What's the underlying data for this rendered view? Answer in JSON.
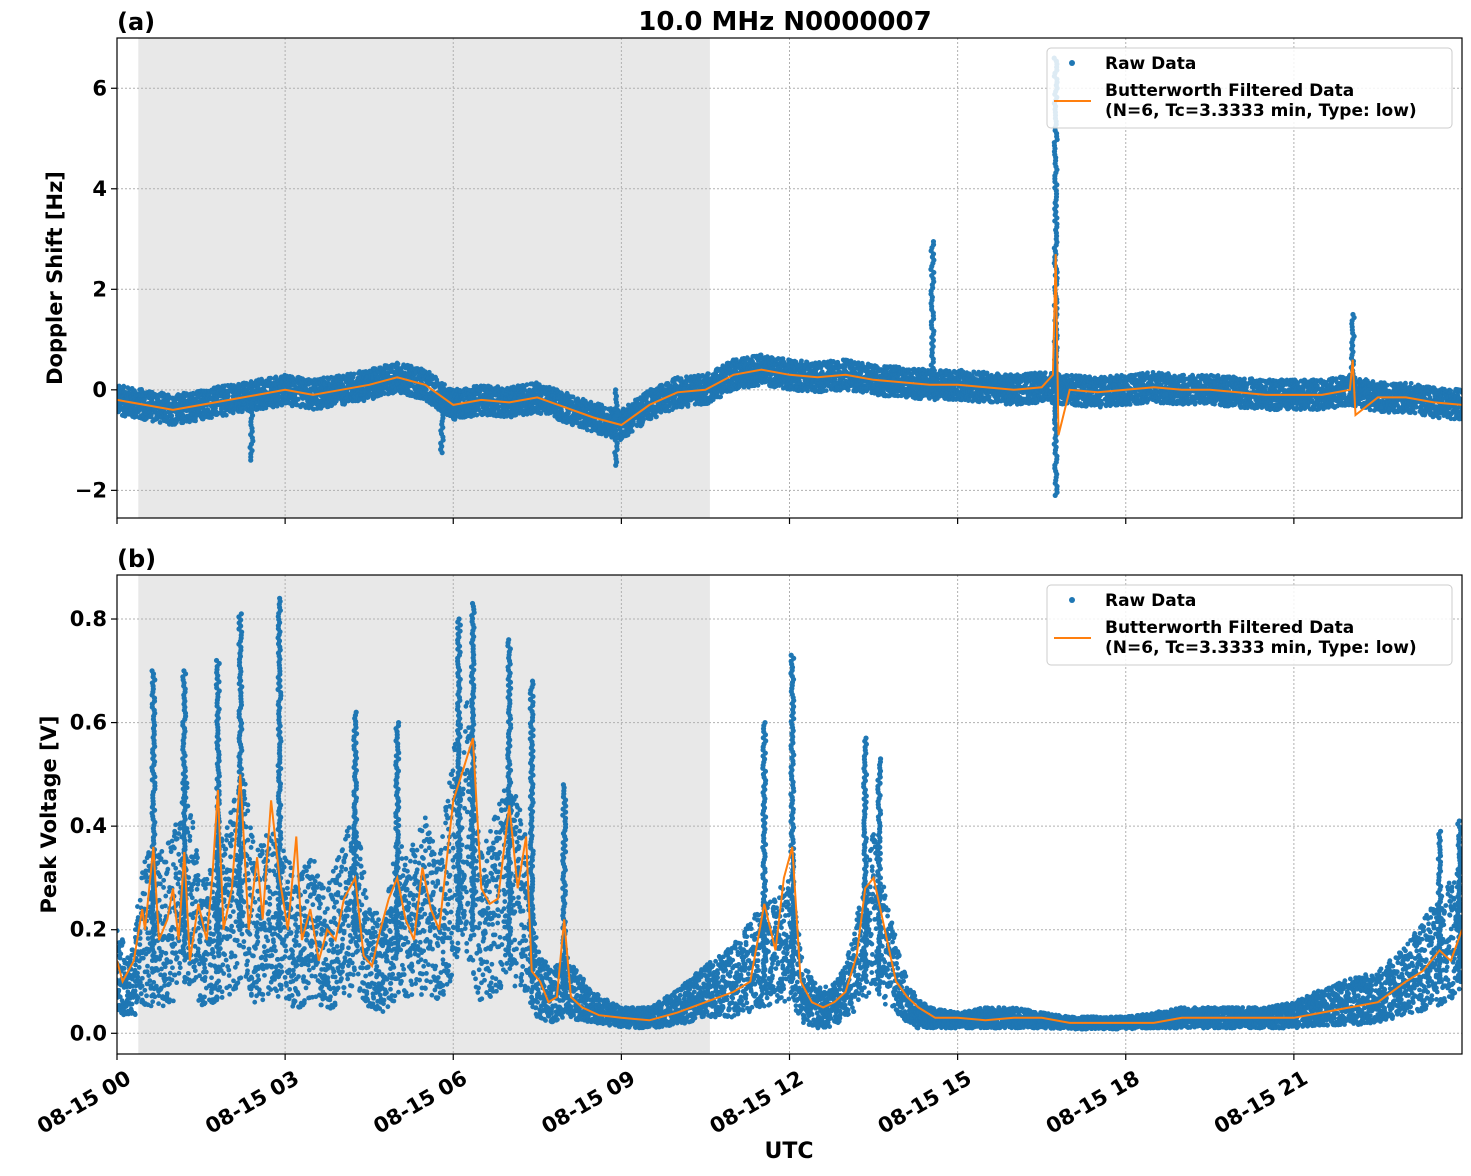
{
  "figure": {
    "title": "10.0 MHz N0000007",
    "xlabel": "UTC",
    "x_tick_labels": [
      "08-15 00",
      "08-15 03",
      "08-15 06",
      "08-15 09",
      "08-15 12",
      "08-15 15",
      "08-15 18",
      "08-15 21"
    ]
  },
  "colors": {
    "raw": "#1f77b4",
    "filtered": "#ff7f0e",
    "shade": "#e8e8e8",
    "grid": "#b0b0b0"
  },
  "chart_data": [
    {
      "type": "scatter",
      "panel_label": "(a)",
      "ylabel": "Doppler Shift [Hz]",
      "x_unit": "hours UTC on 08-15",
      "xlim": [
        0,
        24
      ],
      "ylim": [
        -2.55,
        7.0
      ],
      "y_ticks": [
        -2,
        0,
        2,
        4,
        6
      ],
      "y_tick_labels": [
        "−2",
        "0",
        "2",
        "4",
        "6"
      ],
      "grid": true,
      "legend_position": "top-right",
      "legend": [
        "Raw Data",
        "Butterworth Filtered Data",
        "(N=6, Tc=3.3333 min, Type: low)"
      ],
      "shaded_region": [
        0.38,
        10.58
      ],
      "series": [
        {
          "name": "Raw Data",
          "x": [
            0,
            0.5,
            1,
            1.5,
            2,
            2.5,
            3,
            3.5,
            4,
            4.5,
            5,
            5.5,
            6,
            6.5,
            7,
            7.5,
            8,
            8.5,
            9,
            9.5,
            10,
            10.5,
            11,
            11.5,
            12,
            12.5,
            13,
            13.5,
            14,
            14.5,
            15,
            15.5,
            16,
            16.5,
            17,
            17.5,
            18,
            18.5,
            19,
            19.5,
            20,
            20.5,
            21,
            21.5,
            22,
            22.5,
            23,
            23.5,
            24
          ],
          "y": [
            -0.2,
            -0.3,
            -0.4,
            -0.3,
            -0.2,
            -0.1,
            0.0,
            -0.1,
            0.0,
            0.1,
            0.25,
            0.1,
            -0.3,
            -0.2,
            -0.25,
            -0.15,
            -0.35,
            -0.55,
            -0.7,
            -0.3,
            -0.05,
            0.0,
            0.3,
            0.4,
            0.3,
            0.25,
            0.3,
            0.2,
            0.15,
            0.1,
            0.1,
            0.05,
            0.0,
            0.05,
            0.0,
            -0.05,
            0.0,
            0.05,
            0.0,
            0.0,
            -0.05,
            -0.1,
            -0.1,
            -0.1,
            0.0,
            -0.15,
            -0.15,
            -0.25,
            -0.3
          ],
          "band": 0.3,
          "spikes": [
            {
              "x": 2.4,
              "ymin": -1.4,
              "ymax": 0.0
            },
            {
              "x": 5.8,
              "ymin": -1.25,
              "ymax": 0.0
            },
            {
              "x": 8.9,
              "ymin": -1.5,
              "ymax": 0.0
            },
            {
              "x": 14.55,
              "ymin": 0.0,
              "ymax": 2.95
            },
            {
              "x": 16.75,
              "ymin": -2.1,
              "ymax": 6.6
            },
            {
              "x": 22.05,
              "ymin": -0.3,
              "ymax": 1.5
            }
          ]
        },
        {
          "name": "Butterworth Filtered Data",
          "x": [
            0,
            0.5,
            1,
            1.5,
            2,
            2.5,
            3,
            3.5,
            4,
            4.5,
            5,
            5.5,
            6,
            6.5,
            7,
            7.5,
            8,
            8.5,
            9,
            9.5,
            10,
            10.5,
            11,
            11.5,
            12,
            12.5,
            13,
            13.5,
            14,
            14.5,
            15,
            15.5,
            16,
            16.5,
            16.7,
            16.75,
            16.8,
            17,
            17.5,
            18,
            18.5,
            19,
            19.5,
            20,
            20.5,
            21,
            21.5,
            22,
            22.05,
            22.1,
            22.5,
            23,
            23.5,
            24
          ],
          "y": [
            -0.2,
            -0.3,
            -0.4,
            -0.3,
            -0.2,
            -0.1,
            0.0,
            -0.1,
            0.0,
            0.1,
            0.25,
            0.1,
            -0.3,
            -0.2,
            -0.25,
            -0.15,
            -0.35,
            -0.55,
            -0.7,
            -0.3,
            -0.05,
            0.0,
            0.3,
            0.4,
            0.3,
            0.25,
            0.3,
            0.2,
            0.15,
            0.1,
            0.1,
            0.05,
            0.0,
            0.05,
            0.3,
            2.7,
            -0.9,
            0.0,
            -0.05,
            0.0,
            0.05,
            0.0,
            0.0,
            -0.05,
            -0.1,
            -0.1,
            -0.1,
            0.0,
            0.6,
            -0.5,
            -0.15,
            -0.15,
            -0.25,
            -0.3
          ]
        }
      ]
    },
    {
      "type": "scatter",
      "panel_label": "(b)",
      "ylabel": "Peak Voltage [V]",
      "x_unit": "hours UTC on 08-15",
      "xlim": [
        0,
        24
      ],
      "ylim": [
        -0.04,
        0.885
      ],
      "y_ticks": [
        0.0,
        0.2,
        0.4,
        0.6,
        0.8
      ],
      "y_tick_labels": [
        "0.0",
        "0.2",
        "0.4",
        "0.6",
        "0.8"
      ],
      "grid": true,
      "legend_position": "top-right",
      "legend": [
        "Raw Data",
        "Butterworth Filtered Data",
        "(N=6, Tc=3.3333 min, Type: low)"
      ],
      "shaded_region": [
        0.38,
        10.58
      ],
      "series": [
        {
          "name": "Raw Data",
          "x": [
            0,
            0.25,
            0.5,
            0.75,
            1,
            1.25,
            1.5,
            1.75,
            2,
            2.25,
            2.5,
            2.75,
            3,
            3.25,
            3.5,
            3.75,
            4,
            4.25,
            4.5,
            4.75,
            5,
            5.25,
            5.5,
            5.75,
            6,
            6.25,
            6.5,
            6.75,
            7,
            7.25,
            7.5,
            7.75,
            8,
            8.5,
            9,
            9.5,
            10,
            10.5,
            11,
            11.5,
            12,
            12.25,
            12.5,
            12.75,
            13,
            13.25,
            13.5,
            13.75,
            14,
            14.25,
            14.5,
            15,
            15.5,
            16,
            16.5,
            17,
            17.5,
            18,
            18.5,
            19,
            19.5,
            20,
            20.5,
            21,
            21.5,
            22,
            22.5,
            23,
            23.5,
            24
          ],
          "y": [
            0.12,
            0.09,
            0.2,
            0.2,
            0.22,
            0.3,
            0.17,
            0.2,
            0.25,
            0.3,
            0.2,
            0.24,
            0.2,
            0.18,
            0.2,
            0.16,
            0.21,
            0.26,
            0.15,
            0.13,
            0.22,
            0.21,
            0.25,
            0.2,
            0.33,
            0.4,
            0.2,
            0.25,
            0.3,
            0.25,
            0.1,
            0.07,
            0.09,
            0.05,
            0.03,
            0.03,
            0.05,
            0.08,
            0.1,
            0.15,
            0.18,
            0.08,
            0.05,
            0.05,
            0.08,
            0.15,
            0.24,
            0.15,
            0.08,
            0.04,
            0.03,
            0.025,
            0.03,
            0.03,
            0.025,
            0.02,
            0.02,
            0.02,
            0.025,
            0.03,
            0.03,
            0.03,
            0.03,
            0.035,
            0.05,
            0.06,
            0.07,
            0.1,
            0.15,
            0.2
          ],
          "band": [
            0.08,
            0.06,
            0.15,
            0.15,
            0.16,
            0.2,
            0.12,
            0.14,
            0.18,
            0.2,
            0.15,
            0.16,
            0.15,
            0.13,
            0.14,
            0.12,
            0.15,
            0.18,
            0.1,
            0.09,
            0.15,
            0.15,
            0.17,
            0.14,
            0.22,
            0.25,
            0.15,
            0.17,
            0.2,
            0.17,
            0.07,
            0.05,
            0.06,
            0.03,
            0.02,
            0.02,
            0.035,
            0.05,
            0.07,
            0.1,
            0.12,
            0.06,
            0.04,
            0.04,
            0.05,
            0.1,
            0.15,
            0.1,
            0.05,
            0.03,
            0.02,
            0.015,
            0.02,
            0.02,
            0.015,
            0.012,
            0.012,
            0.012,
            0.015,
            0.02,
            0.02,
            0.02,
            0.02,
            0.025,
            0.035,
            0.045,
            0.05,
            0.07,
            0.1,
            0.13
          ],
          "spikes": [
            {
              "x": 0.65,
              "ymin": 0.15,
              "ymax": 0.7
            },
            {
              "x": 1.2,
              "ymin": 0.15,
              "ymax": 0.7
            },
            {
              "x": 1.8,
              "ymin": 0.15,
              "ymax": 0.72
            },
            {
              "x": 2.2,
              "ymin": 0.2,
              "ymax": 0.81
            },
            {
              "x": 2.9,
              "ymin": 0.2,
              "ymax": 0.84
            },
            {
              "x": 4.25,
              "ymin": 0.2,
              "ymax": 0.62
            },
            {
              "x": 5.0,
              "ymin": 0.15,
              "ymax": 0.6
            },
            {
              "x": 6.1,
              "ymin": 0.2,
              "ymax": 0.8
            },
            {
              "x": 6.35,
              "ymin": 0.2,
              "ymax": 0.83
            },
            {
              "x": 7.0,
              "ymin": 0.15,
              "ymax": 0.76
            },
            {
              "x": 7.4,
              "ymin": 0.1,
              "ymax": 0.68
            },
            {
              "x": 7.98,
              "ymin": 0.08,
              "ymax": 0.48
            },
            {
              "x": 11.55,
              "ymin": 0.1,
              "ymax": 0.6
            },
            {
              "x": 12.05,
              "ymin": 0.1,
              "ymax": 0.73
            },
            {
              "x": 13.35,
              "ymin": 0.1,
              "ymax": 0.57
            },
            {
              "x": 13.6,
              "ymin": 0.1,
              "ymax": 0.53
            },
            {
              "x": 23.6,
              "ymin": 0.1,
              "ymax": 0.39
            },
            {
              "x": 23.95,
              "ymin": 0.1,
              "ymax": 0.41
            }
          ]
        },
        {
          "name": "Butterworth Filtered Data",
          "x": [
            0,
            0.1,
            0.3,
            0.45,
            0.5,
            0.65,
            0.75,
            0.9,
            1.0,
            1.1,
            1.2,
            1.3,
            1.45,
            1.6,
            1.7,
            1.8,
            1.9,
            2.05,
            2.2,
            2.35,
            2.5,
            2.6,
            2.75,
            2.9,
            3.05,
            3.2,
            3.3,
            3.45,
            3.6,
            3.75,
            3.9,
            4.05,
            4.25,
            4.4,
            4.55,
            4.7,
            4.85,
            5.0,
            5.15,
            5.3,
            5.45,
            5.6,
            5.75,
            5.9,
            6.0,
            6.15,
            6.35,
            6.5,
            6.65,
            6.8,
            7.0,
            7.15,
            7.3,
            7.4,
            7.55,
            7.7,
            7.85,
            7.98,
            8.1,
            8.3,
            8.6,
            9.0,
            9.5,
            10.0,
            10.5,
            11.0,
            11.3,
            11.55,
            11.75,
            11.9,
            12.05,
            12.2,
            12.4,
            12.6,
            12.8,
            13.0,
            13.2,
            13.35,
            13.5,
            13.7,
            13.9,
            14.1,
            14.3,
            14.6,
            15.0,
            15.5,
            16.0,
            16.5,
            17.0,
            17.5,
            18.0,
            18.5,
            19.0,
            19.5,
            20.0,
            20.5,
            21.0,
            21.5,
            22.0,
            22.5,
            23.0,
            23.3,
            23.6,
            23.8,
            24.0
          ],
          "y": [
            0.14,
            0.1,
            0.14,
            0.24,
            0.2,
            0.36,
            0.18,
            0.22,
            0.28,
            0.18,
            0.35,
            0.14,
            0.25,
            0.18,
            0.3,
            0.47,
            0.2,
            0.28,
            0.5,
            0.2,
            0.34,
            0.22,
            0.45,
            0.3,
            0.2,
            0.38,
            0.18,
            0.24,
            0.14,
            0.2,
            0.18,
            0.26,
            0.3,
            0.15,
            0.13,
            0.2,
            0.26,
            0.3,
            0.22,
            0.18,
            0.32,
            0.24,
            0.2,
            0.35,
            0.45,
            0.5,
            0.57,
            0.28,
            0.25,
            0.26,
            0.44,
            0.28,
            0.38,
            0.12,
            0.1,
            0.06,
            0.07,
            0.22,
            0.07,
            0.05,
            0.035,
            0.03,
            0.025,
            0.04,
            0.06,
            0.08,
            0.1,
            0.25,
            0.16,
            0.3,
            0.36,
            0.1,
            0.06,
            0.05,
            0.06,
            0.08,
            0.15,
            0.28,
            0.3,
            0.2,
            0.1,
            0.07,
            0.05,
            0.03,
            0.03,
            0.025,
            0.03,
            0.03,
            0.02,
            0.02,
            0.02,
            0.02,
            0.03,
            0.03,
            0.03,
            0.03,
            0.03,
            0.04,
            0.05,
            0.06,
            0.1,
            0.12,
            0.16,
            0.14,
            0.2
          ]
        }
      ]
    }
  ]
}
